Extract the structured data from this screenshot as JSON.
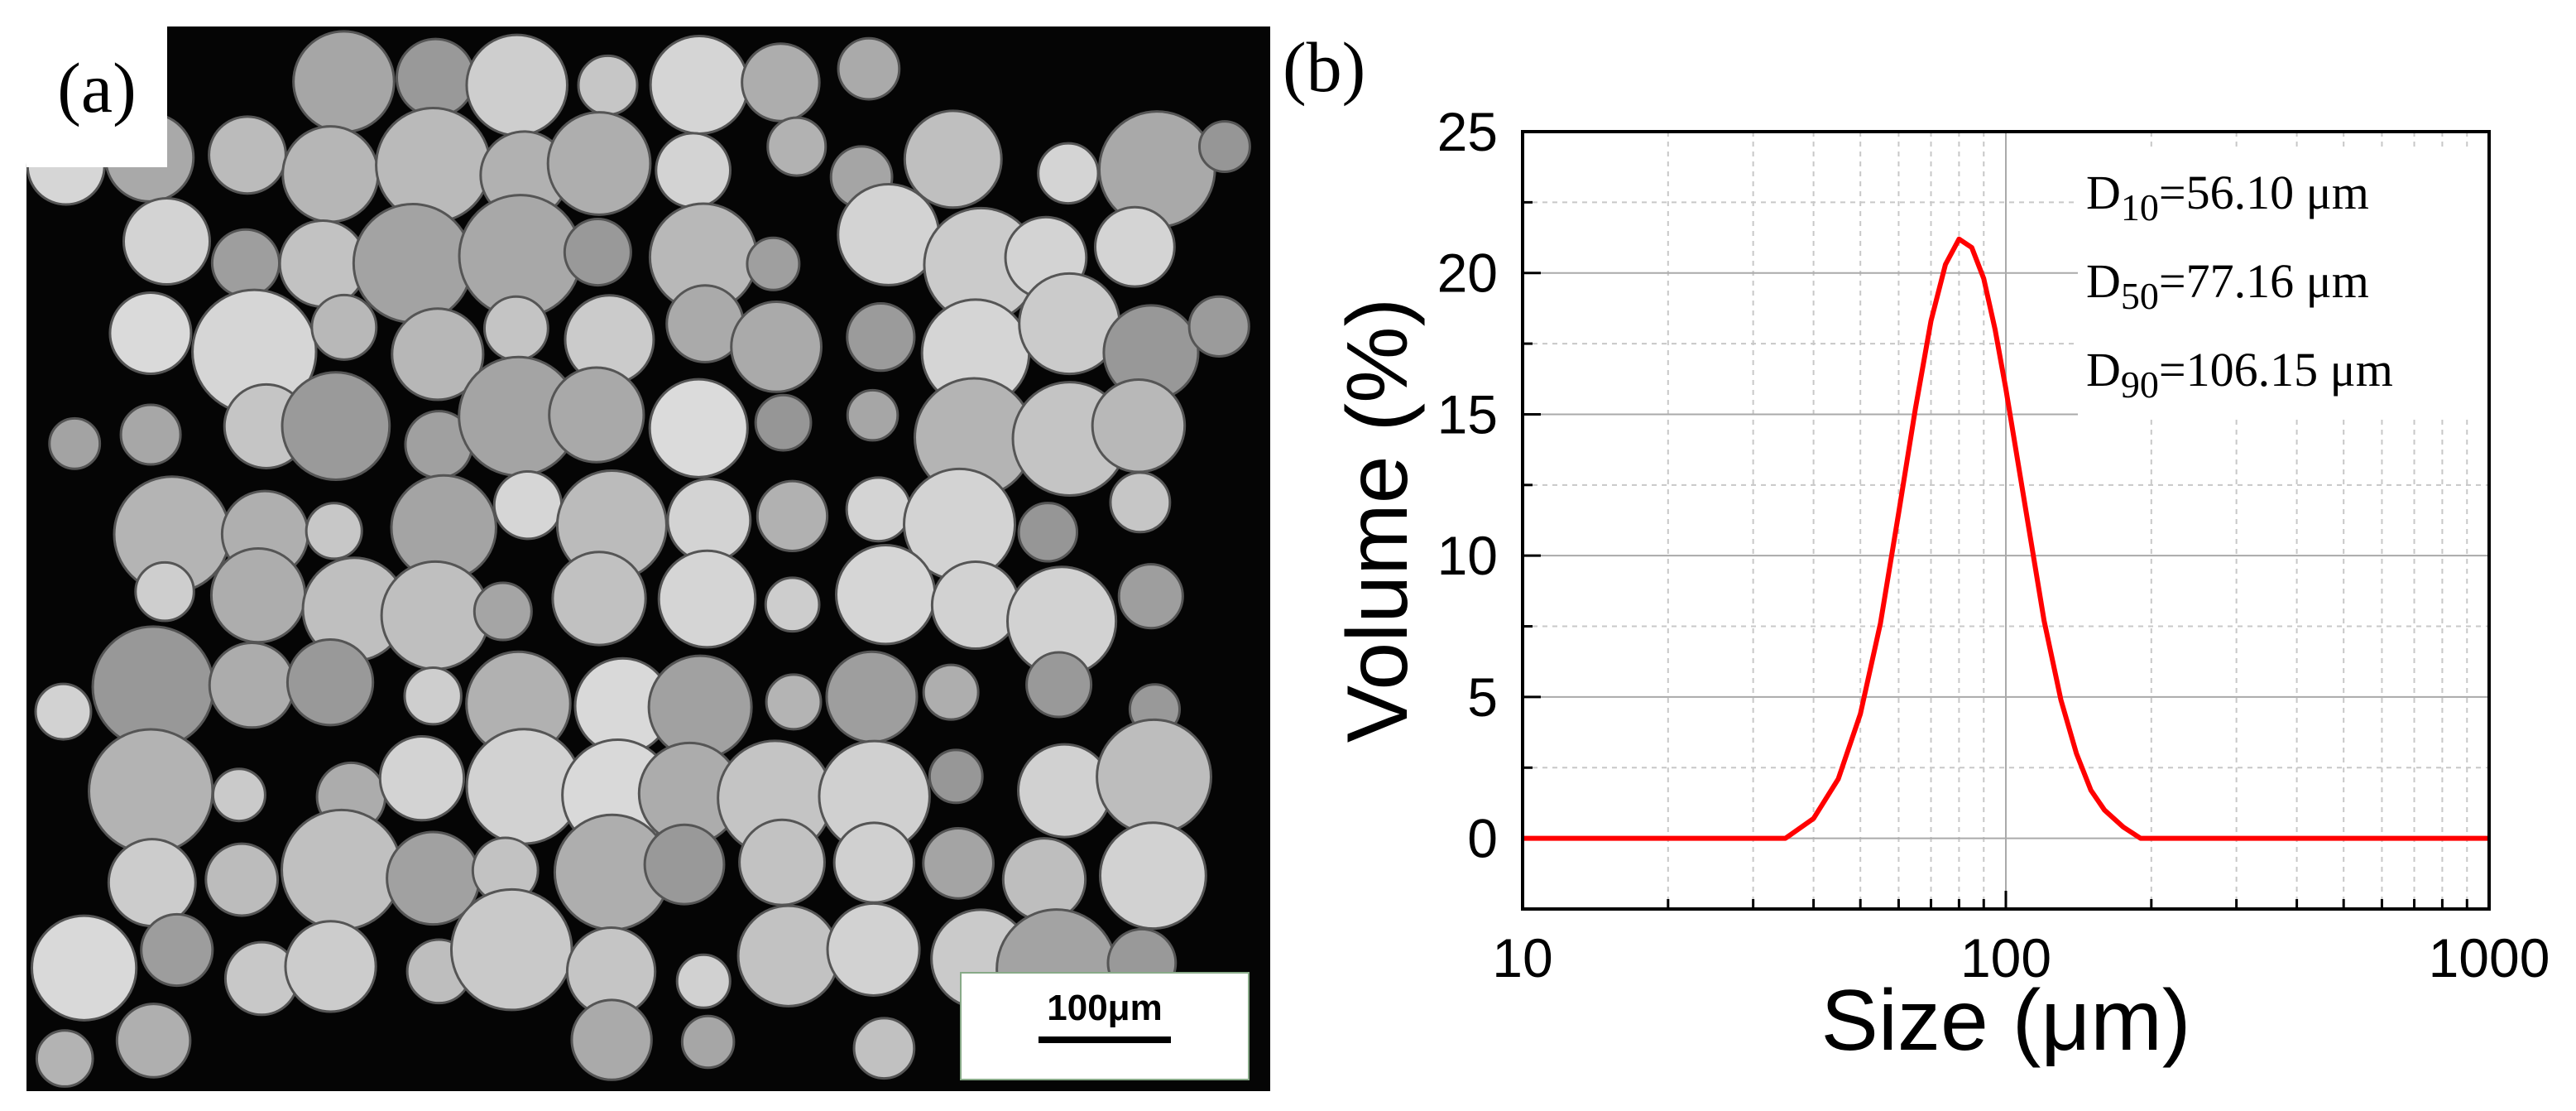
{
  "panel_a": {
    "label": "(a)",
    "scale_bar": "100μm"
  },
  "chart_data": {
    "type": "line",
    "label": "(b)",
    "x_label": "Size (μm)",
    "y_label": "Volume (%)",
    "log_x": true,
    "grid": true,
    "xlim": [
      10,
      1000
    ],
    "xticks": [
      10,
      100,
      1000
    ],
    "ylim": [
      -2.5,
      25
    ],
    "yticks": [
      0,
      5,
      10,
      15,
      20,
      25
    ],
    "annotations": [
      {
        "symbol": "D",
        "subscript": "10",
        "text": "=56.10 μm"
      },
      {
        "symbol": "D",
        "subscript": "50",
        "text": "=77.16 μm"
      },
      {
        "symbol": "D",
        "subscript": "90",
        "text": "=106.15 μm"
      }
    ],
    "x": [
      10,
      35,
      40,
      45,
      50,
      55,
      60,
      65,
      70,
      75,
      80,
      85,
      90,
      95,
      100,
      110,
      120,
      130,
      140,
      150,
      160,
      175,
      190,
      1000
    ],
    "series": [
      {
        "name": "Volume",
        "color": "#ff0000",
        "values": [
          0,
          0,
          0.7,
          2.1,
          4.4,
          7.6,
          11.5,
          15.2,
          18.3,
          20.3,
          21.2,
          20.9,
          19.8,
          18.0,
          15.9,
          11.6,
          7.7,
          4.9,
          3.0,
          1.7,
          1.0,
          0.4,
          0,
          0
        ]
      }
    ]
  }
}
